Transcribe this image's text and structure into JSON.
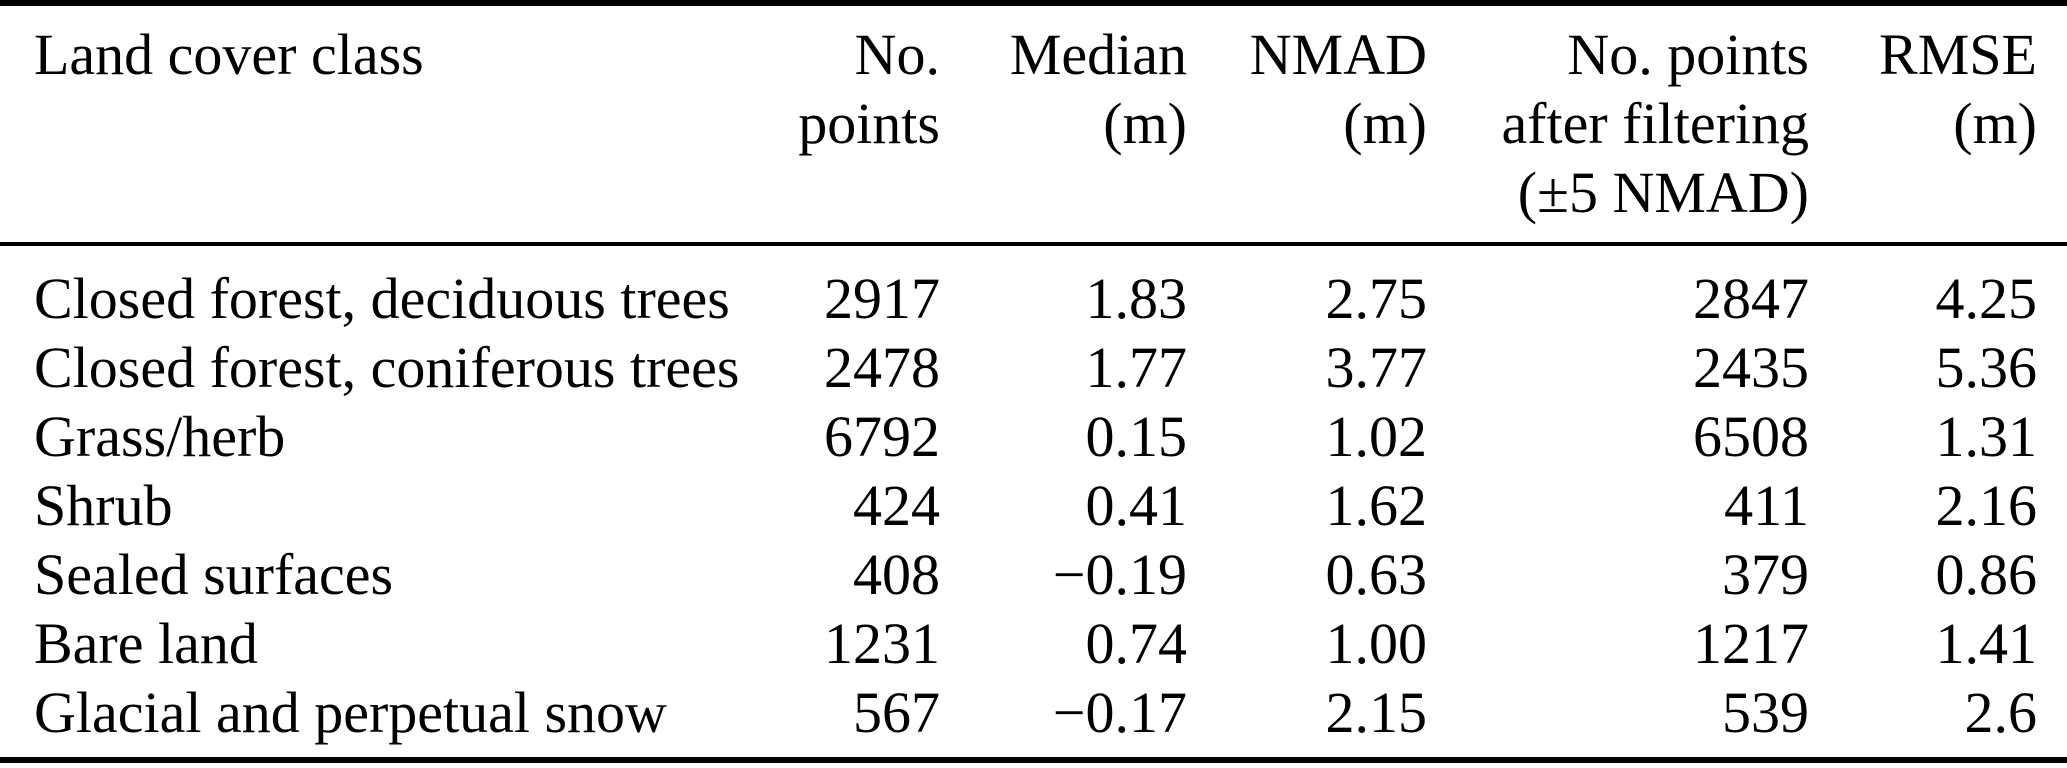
{
  "colors": {
    "background": "#ffffff",
    "text": "#000000",
    "rule": "#000000"
  },
  "table": {
    "columns": [
      {
        "id": "land-cover-class",
        "lines": [
          "Land cover class"
        ]
      },
      {
        "id": "no-points",
        "lines": [
          "No.",
          "points"
        ]
      },
      {
        "id": "median-m",
        "lines": [
          "Median",
          "(m)"
        ]
      },
      {
        "id": "nmad-m",
        "lines": [
          "NMAD",
          "(m)"
        ]
      },
      {
        "id": "no-points-after-filtering",
        "lines": [
          "No. points",
          "after filtering",
          "(±5 NMAD)"
        ]
      },
      {
        "id": "rmse-m",
        "lines": [
          "RMSE",
          "(m)"
        ]
      }
    ],
    "rows": [
      [
        "Closed forest, deciduous trees",
        "2917",
        "1.83",
        "2.75",
        "2847",
        "4.25"
      ],
      [
        "Closed forest, coniferous trees",
        "2478",
        "1.77",
        "3.77",
        "2435",
        "5.36"
      ],
      [
        "Grass/herb",
        "6792",
        "0.15",
        "1.02",
        "6508",
        "1.31"
      ],
      [
        "Shrub",
        "424",
        "0.41",
        "1.62",
        "411",
        "2.16"
      ],
      [
        "Sealed surfaces",
        "408",
        "−0.19",
        "0.63",
        "379",
        "0.86"
      ],
      [
        "Bare land",
        "1231",
        "0.74",
        "1.00",
        "1217",
        "1.41"
      ],
      [
        "Glacial and perpetual snow",
        "567",
        "−0.17",
        "2.15",
        "539",
        "2.6"
      ]
    ]
  },
  "chart_data": {
    "type": "table",
    "title": "",
    "columns": [
      "Land cover class",
      "No. points",
      "Median (m)",
      "NMAD (m)",
      "No. points after filtering (±5 NMAD)",
      "RMSE (m)"
    ],
    "rows": [
      {
        "land_cover_class": "Closed forest, deciduous trees",
        "no_points": 2917,
        "median_m": 1.83,
        "nmad_m": 2.75,
        "no_points_after_filtering": 2847,
        "rmse_m": 4.25
      },
      {
        "land_cover_class": "Closed forest, coniferous trees",
        "no_points": 2478,
        "median_m": 1.77,
        "nmad_m": 3.77,
        "no_points_after_filtering": 2435,
        "rmse_m": 5.36
      },
      {
        "land_cover_class": "Grass/herb",
        "no_points": 6792,
        "median_m": 0.15,
        "nmad_m": 1.02,
        "no_points_after_filtering": 6508,
        "rmse_m": 1.31
      },
      {
        "land_cover_class": "Shrub",
        "no_points": 424,
        "median_m": 0.41,
        "nmad_m": 1.62,
        "no_points_after_filtering": 411,
        "rmse_m": 2.16
      },
      {
        "land_cover_class": "Sealed surfaces",
        "no_points": 408,
        "median_m": -0.19,
        "nmad_m": 0.63,
        "no_points_after_filtering": 379,
        "rmse_m": 0.86
      },
      {
        "land_cover_class": "Bare land",
        "no_points": 1231,
        "median_m": 0.74,
        "nmad_m": 1.0,
        "no_points_after_filtering": 1217,
        "rmse_m": 1.41
      },
      {
        "land_cover_class": "Glacial and perpetual snow",
        "no_points": 567,
        "median_m": -0.17,
        "nmad_m": 2.15,
        "no_points_after_filtering": 539,
        "rmse_m": 2.6
      }
    ]
  }
}
